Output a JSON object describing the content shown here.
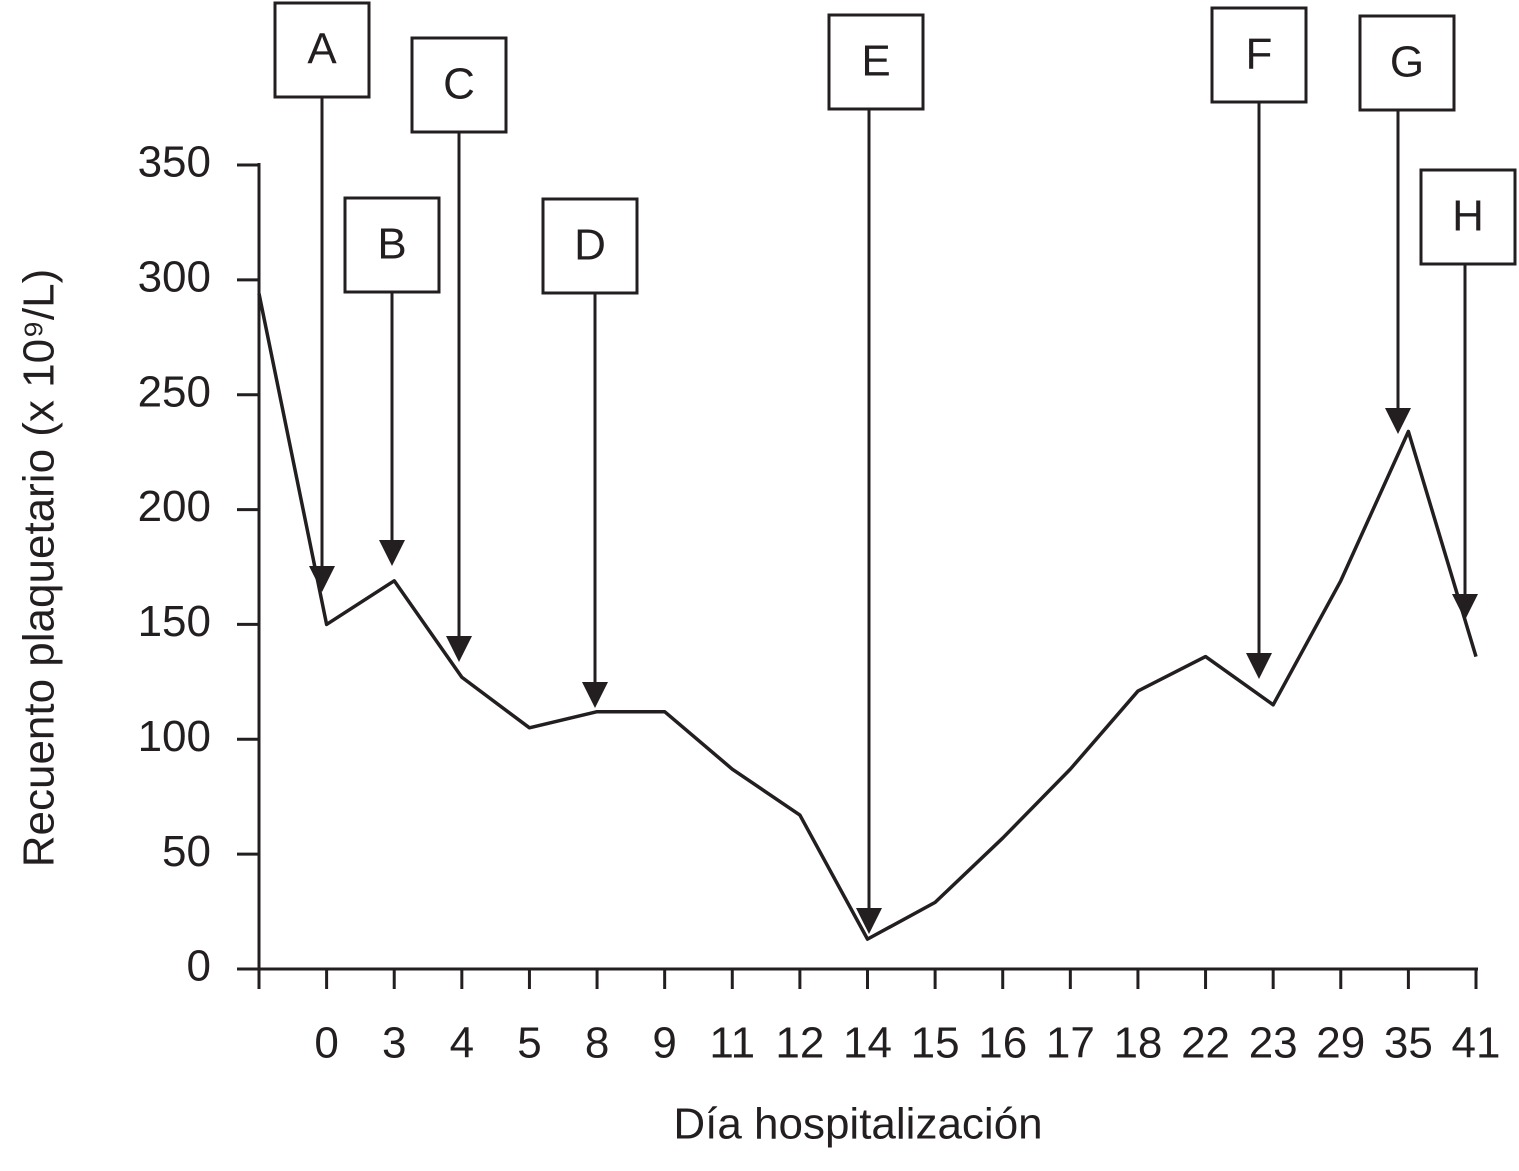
{
  "chart_data": {
    "type": "line",
    "xlabel": "Día hospitalización",
    "ylabel": "Recuento plaquetario (x 10⁹/L)",
    "categories": [
      null,
      "0",
      "3",
      "4",
      "5",
      "8",
      "9",
      "11",
      "12",
      "14",
      "15",
      "16",
      "17",
      "18",
      "22",
      "23",
      "29",
      "35",
      "41"
    ],
    "values": [
      294,
      150,
      169,
      127,
      105,
      112,
      112,
      87,
      67,
      13,
      29,
      57,
      87,
      121,
      136,
      115,
      169,
      234,
      136
    ],
    "color": "#231f20",
    "ylim": [
      0,
      350
    ],
    "yticks": [
      0,
      50,
      100,
      150,
      200,
      250,
      300,
      350
    ],
    "annotations": [
      "A",
      "B",
      "C",
      "D",
      "E",
      "F",
      "G",
      "H"
    ]
  }
}
